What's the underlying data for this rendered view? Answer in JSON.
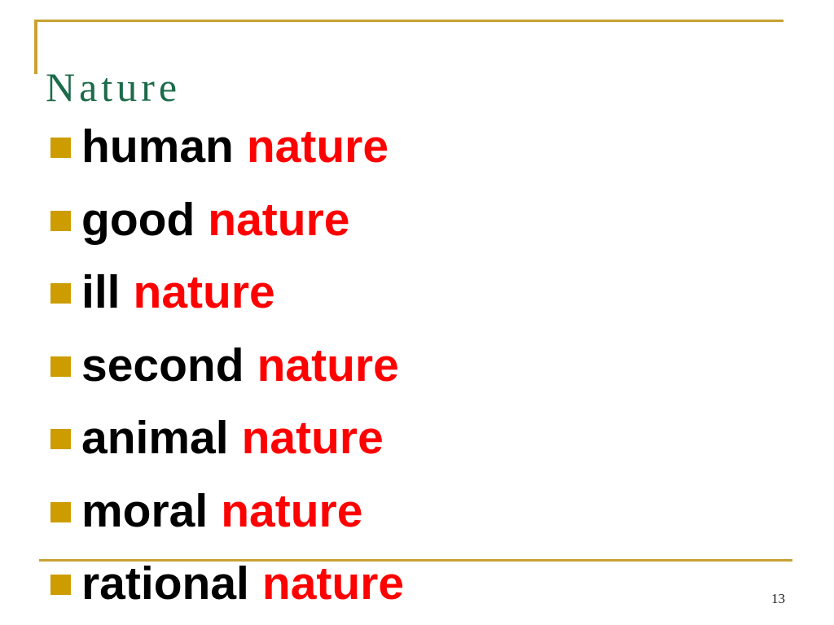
{
  "slide": {
    "title": {
      "text": "Nature",
      "color": "#1C6B4A"
    },
    "list": {
      "items": [
        {
          "word": "human",
          "suffix": "nature"
        },
        {
          "word": "good",
          "suffix": "nature"
        },
        {
          "word": "ill",
          "suffix": "nature"
        },
        {
          "word": "second",
          "suffix": "nature"
        },
        {
          "word": "animal",
          "suffix": "nature"
        },
        {
          "word": "moral",
          "suffix": "nature"
        },
        {
          "word": "rational",
          "suffix": "nature"
        }
      ],
      "bullet_icon": "square-bullet-icon",
      "word_color": "#000000",
      "suffix_color": "#FF0000",
      "bullet_color": "#CC9C00"
    },
    "rules": {
      "color": "#C8A232"
    },
    "footer": {
      "page_number": "13"
    }
  }
}
